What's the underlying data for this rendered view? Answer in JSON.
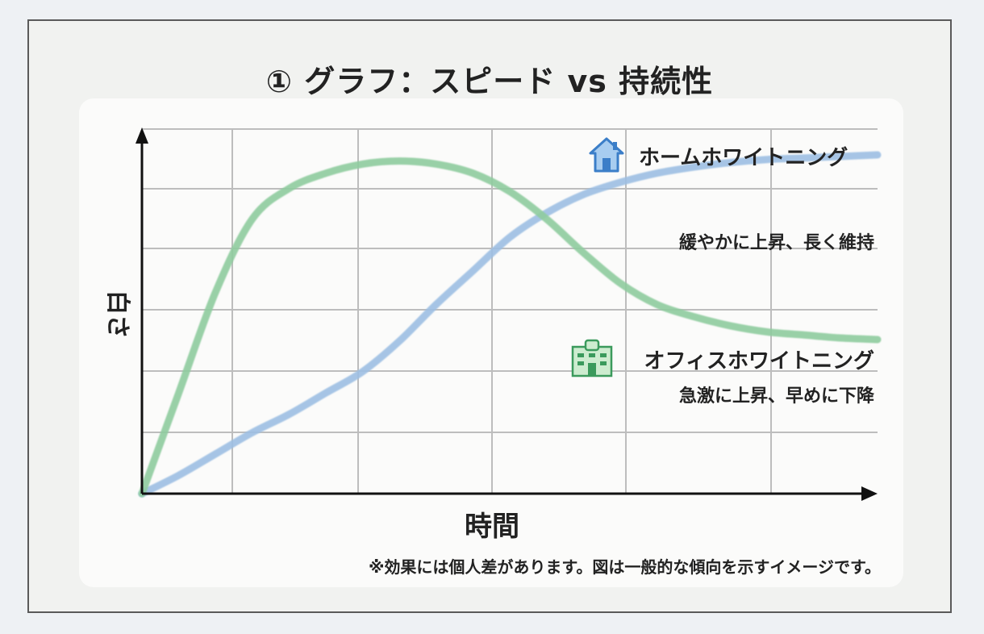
{
  "title": "① グラフ：スピード vs 持続性",
  "chart_data": {
    "type": "line",
    "title": "① グラフ：スピード vs 持続性",
    "xlabel": "時間",
    "ylabel": "白さ",
    "grid": true,
    "x": [
      0,
      0.5,
      1,
      1.5,
      2,
      2.5,
      3,
      3.5,
      4,
      4.5,
      5,
      5.5,
      6,
      6.5,
      7,
      7.5,
      8,
      8.5,
      9,
      9.5,
      10
    ],
    "series": [
      {
        "name": "ホームホワイトニング",
        "description": "緩やかに上昇、長く維持",
        "color": "#9dbfe3",
        "values": [
          0,
          0.6,
          1.3,
          2.0,
          2.6,
          3.3,
          4.0,
          5.0,
          6.2,
          7.3,
          8.4,
          9.2,
          9.8,
          10.2,
          10.5,
          10.7,
          10.85,
          10.95,
          11.0,
          11.05,
          11.1
        ]
      },
      {
        "name": "オフィスホワイトニング",
        "description": "急激に上昇、早めに下降",
        "color": "#8fcc9f",
        "values": [
          0,
          3.3,
          6.6,
          9.0,
          10.0,
          10.5,
          10.8,
          10.9,
          10.8,
          10.5,
          9.9,
          9.0,
          7.9,
          6.9,
          6.2,
          5.8,
          5.5,
          5.3,
          5.2,
          5.1,
          5.05
        ]
      }
    ],
    "xlim": [
      0,
      10
    ],
    "ylim": [
      0,
      12
    ],
    "annotations": {
      "home_label": "ホームホワイトニング",
      "home_desc": "緩やかに上昇、長く維持",
      "office_label": "オフィスホワイトニング",
      "office_desc": "急激に上昇、早めに下降"
    },
    "footnote": "※効果には個人差があります。図は一般的な傾向を示すイメージです。"
  },
  "icons": {
    "home": "house-icon",
    "office": "office-building-icon"
  },
  "colors": {
    "grid": "#bdbdbd",
    "axis": "#111111",
    "panel": "#fbfbfa",
    "frame_border": "#5a5a5a"
  }
}
